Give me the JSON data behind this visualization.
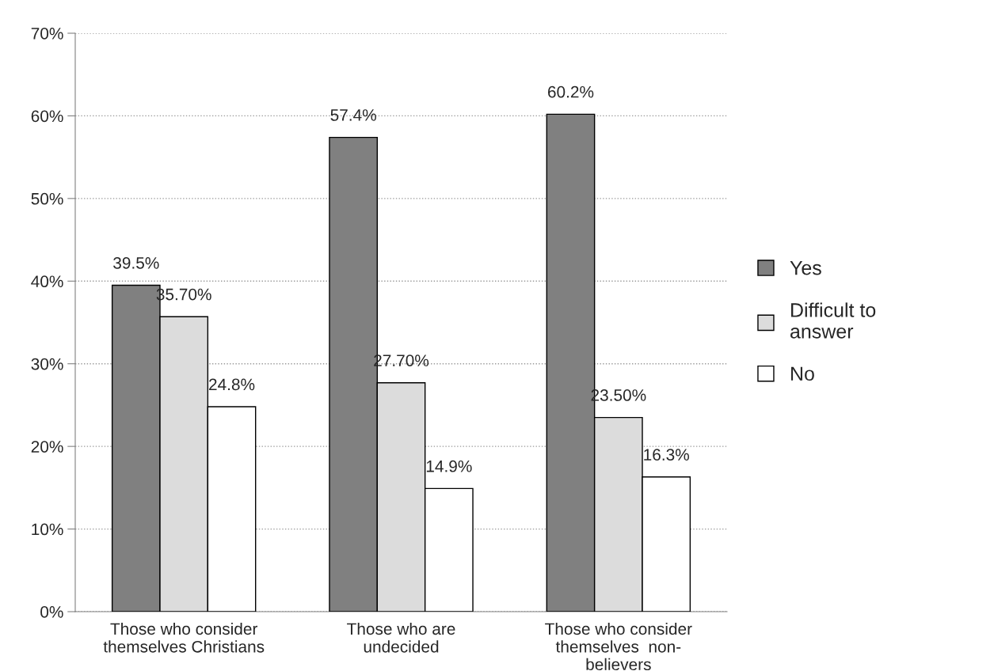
{
  "chart_data": {
    "type": "bar",
    "categories": [
      "Those who consider\nthemselves Christians",
      "Those who are\nundecided",
      "Those who consider\nthemselves  non-\nbelievers"
    ],
    "series": [
      {
        "name": "Yes",
        "color": "#808080",
        "values": [
          39.5,
          57.4,
          60.2
        ],
        "value_labels": [
          "39.5%",
          "57.4%",
          "60.2%"
        ]
      },
      {
        "name": "Difficult to\nanswer",
        "color": "#dcdcdc",
        "values": [
          35.7,
          27.7,
          23.5
        ],
        "value_labels": [
          "35.70%",
          "27.70%",
          "23.50%"
        ]
      },
      {
        "name": "No",
        "color": "#ffffff",
        "values": [
          24.8,
          14.9,
          16.3
        ],
        "value_labels": [
          "24.8%",
          "14.9%",
          "16.3%"
        ]
      }
    ],
    "ylim": [
      0,
      70
    ],
    "yticks": [
      {
        "value": 0,
        "label": "0%"
      },
      {
        "value": 10,
        "label": "10%"
      },
      {
        "value": 20,
        "label": "20%"
      },
      {
        "value": 30,
        "label": "30%"
      },
      {
        "value": 40,
        "label": "40%"
      },
      {
        "value": 50,
        "label": "50%"
      },
      {
        "value": 60,
        "label": "60%"
      },
      {
        "value": 70,
        "label": "70%"
      }
    ],
    "grid": "y",
    "legend": "right"
  }
}
